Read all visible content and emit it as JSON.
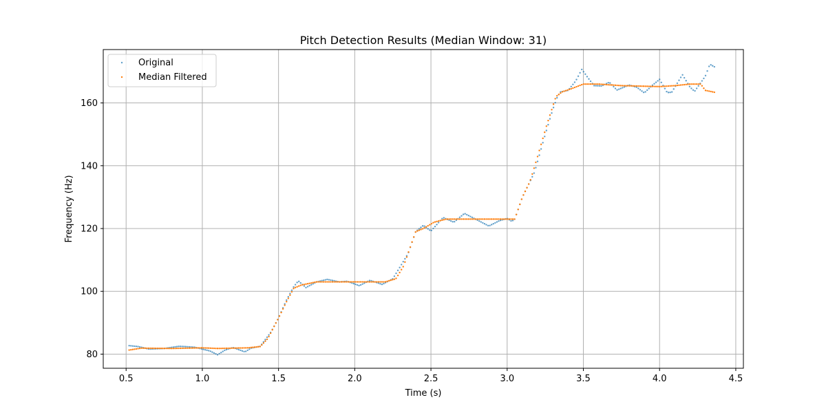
{
  "chart_data": {
    "type": "scatter",
    "title": "Pitch Detection Results (Median Window: 31)",
    "xlabel": "Time (s)",
    "ylabel": "Frequency (Hz)",
    "xlim": [
      0.35,
      4.55
    ],
    "ylim": [
      75.5,
      177
    ],
    "xticks": [
      0.5,
      1.0,
      1.5,
      2.0,
      2.5,
      3.0,
      3.5,
      4.0,
      4.5
    ],
    "xtick_labels": [
      "0.5",
      "1.0",
      "1.5",
      "2.0",
      "2.5",
      "3.0",
      "3.5",
      "4.0",
      "4.5"
    ],
    "yticks": [
      80,
      100,
      120,
      140,
      160
    ],
    "ytick_labels": [
      "80",
      "100",
      "120",
      "140",
      "160"
    ],
    "grid": true,
    "legend_position": "top-left",
    "series": [
      {
        "name": "Original",
        "color": "#1f77b4",
        "keypoints": [
          [
            0.52,
            82.7
          ],
          [
            0.58,
            82.4
          ],
          [
            0.65,
            81.6
          ],
          [
            0.75,
            81.8
          ],
          [
            0.85,
            82.5
          ],
          [
            0.95,
            82.2
          ],
          [
            1.05,
            81.0
          ],
          [
            1.1,
            79.8
          ],
          [
            1.15,
            81.3
          ],
          [
            1.2,
            82.1
          ],
          [
            1.28,
            80.7
          ],
          [
            1.32,
            81.9
          ],
          [
            1.38,
            82.5
          ],
          [
            1.45,
            87.0
          ],
          [
            1.5,
            91.5
          ],
          [
            1.55,
            97.0
          ],
          [
            1.6,
            101.5
          ],
          [
            1.63,
            103.3
          ],
          [
            1.68,
            101.2
          ],
          [
            1.75,
            103.0
          ],
          [
            1.82,
            103.8
          ],
          [
            1.9,
            103.0
          ],
          [
            1.95,
            103.2
          ],
          [
            2.03,
            101.8
          ],
          [
            2.1,
            103.5
          ],
          [
            2.18,
            102.2
          ],
          [
            2.25,
            104.0
          ],
          [
            2.3,
            108.0
          ],
          [
            2.35,
            112.0
          ],
          [
            2.4,
            119.0
          ],
          [
            2.45,
            121.0
          ],
          [
            2.5,
            119.2
          ],
          [
            2.58,
            123.5
          ],
          [
            2.65,
            122.0
          ],
          [
            2.72,
            124.8
          ],
          [
            2.8,
            122.8
          ],
          [
            2.88,
            120.8
          ],
          [
            2.95,
            122.5
          ],
          [
            3.0,
            123.2
          ],
          [
            3.03,
            122.3
          ],
          [
            3.05,
            123.0
          ],
          [
            3.1,
            130.0
          ],
          [
            3.18,
            138.0
          ],
          [
            3.25,
            150.0
          ],
          [
            3.3,
            158.0
          ],
          [
            3.33,
            162.0
          ],
          [
            3.35,
            163.5
          ],
          [
            3.4,
            164.0
          ],
          [
            3.45,
            167.0
          ],
          [
            3.49,
            170.7
          ],
          [
            3.53,
            168.0
          ],
          [
            3.57,
            165.5
          ],
          [
            3.62,
            165.4
          ],
          [
            3.67,
            166.6
          ],
          [
            3.72,
            164.1
          ],
          [
            3.8,
            165.7
          ],
          [
            3.85,
            165.0
          ],
          [
            3.9,
            163.2
          ],
          [
            3.95,
            165.5
          ],
          [
            4.0,
            167.5
          ],
          [
            4.05,
            163.3
          ],
          [
            4.08,
            163.4
          ],
          [
            4.15,
            169.0
          ],
          [
            4.2,
            165.0
          ],
          [
            4.23,
            163.7
          ],
          [
            4.3,
            168.5
          ],
          [
            4.33,
            172.3
          ],
          [
            4.36,
            171.5
          ]
        ]
      },
      {
        "name": "Median Filtered",
        "color": "#ff7f0e",
        "keypoints": [
          [
            0.52,
            81.3
          ],
          [
            0.6,
            81.9
          ],
          [
            0.8,
            81.8
          ],
          [
            1.0,
            82.0
          ],
          [
            1.1,
            81.8
          ],
          [
            1.3,
            82.0
          ],
          [
            1.38,
            82.4
          ],
          [
            1.43,
            85.0
          ],
          [
            1.5,
            91.5
          ],
          [
            1.55,
            96.5
          ],
          [
            1.6,
            101.0
          ],
          [
            1.65,
            102.0
          ],
          [
            1.75,
            103.0
          ],
          [
            2.0,
            103.0
          ],
          [
            2.2,
            103.0
          ],
          [
            2.27,
            104.0
          ],
          [
            2.32,
            108.0
          ],
          [
            2.4,
            119.0
          ],
          [
            2.45,
            120.0
          ],
          [
            2.52,
            122.0
          ],
          [
            2.6,
            123.0
          ],
          [
            3.05,
            123.0
          ],
          [
            3.1,
            130.0
          ],
          [
            3.15,
            135.0
          ],
          [
            3.2,
            143.0
          ],
          [
            3.26,
            153.0
          ],
          [
            3.32,
            162.0
          ],
          [
            3.36,
            163.5
          ],
          [
            3.42,
            164.5
          ],
          [
            3.5,
            166.0
          ],
          [
            3.6,
            166.0
          ],
          [
            3.75,
            165.5
          ],
          [
            4.0,
            165.2
          ],
          [
            4.1,
            165.5
          ],
          [
            4.2,
            166.0
          ],
          [
            4.27,
            166.0
          ],
          [
            4.3,
            164.0
          ],
          [
            4.36,
            163.4
          ]
        ]
      }
    ]
  }
}
